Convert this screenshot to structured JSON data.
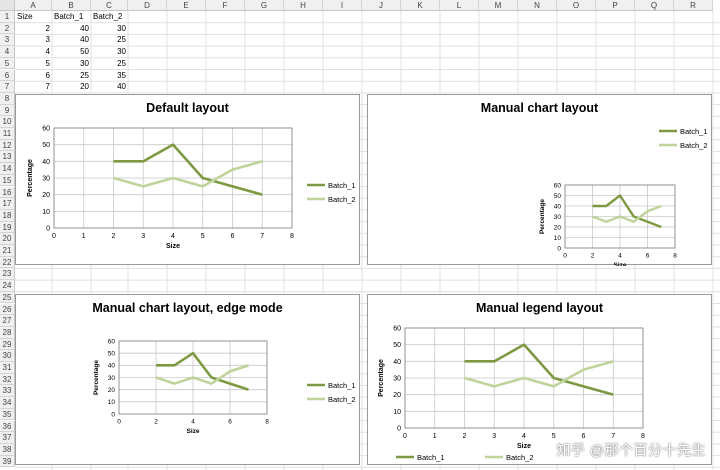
{
  "sheet": {
    "columns": [
      "A",
      "B",
      "C",
      "D",
      "E",
      "F",
      "G",
      "H",
      "I",
      "J",
      "K",
      "L",
      "M",
      "N",
      "O",
      "P",
      "Q",
      "R"
    ],
    "rows": [
      "1",
      "2",
      "3",
      "4",
      "5",
      "6",
      "7",
      "8",
      "9",
      "10",
      "11",
      "12",
      "13",
      "14",
      "15",
      "16",
      "17",
      "18",
      "19",
      "20",
      "21",
      "22",
      "23",
      "24",
      "25",
      "26",
      "27",
      "28",
      "29",
      "30",
      "31",
      "32",
      "33",
      "34",
      "35",
      "36",
      "37",
      "38",
      "39"
    ],
    "table": {
      "headers": [
        "Size",
        "Batch_1",
        "Batch_2"
      ],
      "rows": [
        [
          "2",
          "40",
          "30"
        ],
        [
          "3",
          "40",
          "25"
        ],
        [
          "4",
          "50",
          "30"
        ],
        [
          "5",
          "30",
          "25"
        ],
        [
          "6",
          "25",
          "35"
        ],
        [
          "7",
          "20",
          "40"
        ]
      ]
    }
  },
  "charts": {
    "c1": {
      "title": "Default layout"
    },
    "c2": {
      "title": "Manual chart layout"
    },
    "c3": {
      "title": "Manual chart layout, edge mode"
    },
    "c4": {
      "title": "Manual legend layout"
    }
  },
  "chart_data": [
    {
      "type": "line",
      "title": "Default layout",
      "xlabel": "Size",
      "ylabel": "Percentage",
      "x": [
        2,
        3,
        4,
        5,
        6,
        7
      ],
      "xlim": [
        0,
        8
      ],
      "ylim": [
        0,
        60
      ],
      "xticks": [
        "0",
        "1",
        "2",
        "3",
        "4",
        "5",
        "6",
        "7",
        "8"
      ],
      "yticks": [
        "0",
        "10",
        "20",
        "30",
        "40",
        "50",
        "60"
      ],
      "series": [
        {
          "name": "Batch_1",
          "values": [
            40,
            40,
            50,
            30,
            25,
            20
          ]
        },
        {
          "name": "Batch_2",
          "values": [
            30,
            25,
            30,
            25,
            35,
            40
          ]
        }
      ],
      "grid": true,
      "legend": "right"
    },
    {
      "type": "line",
      "title": "Manual chart layout",
      "xlabel": "Size",
      "ylabel": "Percentage",
      "x": [
        2,
        3,
        4,
        5,
        6,
        7
      ],
      "xlim": [
        0,
        8
      ],
      "ylim": [
        0,
        60
      ],
      "xticks": [
        "0",
        "2",
        "4",
        "6",
        "8"
      ],
      "yticks": [
        "0",
        "10",
        "20",
        "30",
        "40",
        "50",
        "60"
      ],
      "series": [
        {
          "name": "Batch_1",
          "values": [
            40,
            40,
            50,
            30,
            25,
            20
          ]
        },
        {
          "name": "Batch_2",
          "values": [
            30,
            25,
            30,
            25,
            35,
            40
          ]
        }
      ],
      "grid": true,
      "legend": "top-right"
    },
    {
      "type": "line",
      "title": "Manual chart layout, edge mode",
      "xlabel": "Size",
      "ylabel": "Percentage",
      "x": [
        2,
        3,
        4,
        5,
        6,
        7
      ],
      "xlim": [
        0,
        8
      ],
      "ylim": [
        0,
        60
      ],
      "xticks": [
        "0",
        "2",
        "4",
        "6",
        "8"
      ],
      "yticks": [
        "0",
        "10",
        "20",
        "30",
        "40",
        "50",
        "60"
      ],
      "series": [
        {
          "name": "Batch_1",
          "values": [
            40,
            40,
            50,
            30,
            25,
            20
          ]
        },
        {
          "name": "Batch_2",
          "values": [
            30,
            25,
            30,
            25,
            35,
            40
          ]
        }
      ],
      "grid": true,
      "legend": "right"
    },
    {
      "type": "line",
      "title": "Manual legend layout",
      "xlabel": "Size",
      "ylabel": "Percentage",
      "x": [
        2,
        3,
        4,
        5,
        6,
        7
      ],
      "xlim": [
        0,
        8
      ],
      "ylim": [
        0,
        60
      ],
      "xticks": [
        "0",
        "1",
        "2",
        "3",
        "4",
        "5",
        "6",
        "7",
        "8"
      ],
      "yticks": [
        "0",
        "10",
        "20",
        "30",
        "40",
        "50",
        "60"
      ],
      "series": [
        {
          "name": "Batch_1",
          "values": [
            40,
            40,
            50,
            30,
            25,
            20
          ]
        },
        {
          "name": "Batch_2",
          "values": [
            30,
            25,
            30,
            25,
            35,
            40
          ]
        }
      ],
      "grid": true,
      "legend": "bottom"
    }
  ],
  "colors": {
    "batch_1": "#7d9a43",
    "batch_2": "#bfd39a",
    "grid": "#c8c8c8",
    "axis": "#8c8c8c"
  },
  "watermark": "知乎 @那个百分十先生"
}
